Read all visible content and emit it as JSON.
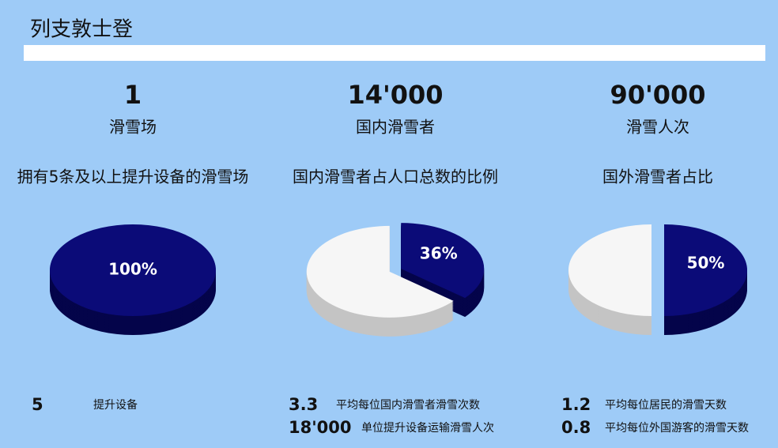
{
  "title": "列支敦士登",
  "columns": [
    {
      "number": "1",
      "label": "滑雪场"
    },
    {
      "number": "14'000",
      "label": "国内滑雪者"
    },
    {
      "number": "90'000",
      "label": "滑雪人次"
    }
  ],
  "chart_data": [
    {
      "type": "pie",
      "title": "拥有5条及以上提升设备的滑雪场",
      "values": [
        100
      ],
      "value_labels": [
        "100%"
      ],
      "colors": [
        "#0b0b78"
      ]
    },
    {
      "type": "pie",
      "title": "国内滑雪者占人口总数的比例",
      "values": [
        36,
        64
      ],
      "value_labels": [
        "36%",
        null
      ],
      "colors": [
        "#0b0b78",
        "#f6f6f6"
      ]
    },
    {
      "type": "pie",
      "title": "国外滑雪者占比",
      "values": [
        50,
        50
      ],
      "value_labels": [
        "50%",
        null
      ],
      "colors": [
        "#0b0b78",
        "#f6f6f6"
      ]
    }
  ],
  "stats": [
    [
      {
        "number": "5",
        "label": "提升设备"
      }
    ],
    [
      {
        "number": "3.3",
        "label": "平均每位国内滑雪者滑雪次数"
      },
      {
        "number": "18'000",
        "label": "单位提升设备运输滑雪人次"
      }
    ],
    [
      {
        "number": "1.2",
        "label": "平均每位居民的滑雪天数"
      },
      {
        "number": "0.8",
        "label": "平均每位外国游客的滑雪天数"
      }
    ]
  ]
}
